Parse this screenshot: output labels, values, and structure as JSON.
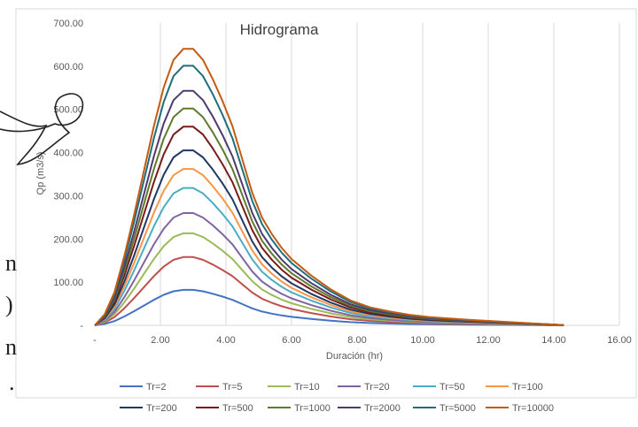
{
  "side_fragments": [
    "n",
    ")",
    "n",
    "."
  ],
  "chart_data": {
    "type": "line",
    "title": "Hidrograma",
    "xlabel": "Duración (hr)",
    "ylabel": "Qp (m3/s)",
    "xlim": [
      0,
      16
    ],
    "ylim": [
      0,
      700
    ],
    "x_ticks": [
      "-",
      "2.00",
      "4.00",
      "6.00",
      "8.00",
      "10.00",
      "12.00",
      "14.00",
      "16.00"
    ],
    "y_ticks": [
      "-",
      "100.00",
      "200.00",
      "300.00",
      "400.00",
      "500.00",
      "600.00",
      "700.00"
    ],
    "grid": "vertical",
    "legend_position": "bottom",
    "series": [
      {
        "name": "Tr=2",
        "color": "#4472C4",
        "peak": 82
      },
      {
        "name": "Tr=5",
        "color": "#C0504D",
        "peak": 158
      },
      {
        "name": "Tr=10",
        "color": "#9BBB59",
        "peak": 213
      },
      {
        "name": "Tr=20",
        "color": "#8064A2",
        "peak": 260
      },
      {
        "name": "Tr=50",
        "color": "#4BACC6",
        "peak": 318
      },
      {
        "name": "Tr=100",
        "color": "#F79646",
        "peak": 362
      },
      {
        "name": "Tr=200",
        "color": "#1F3864",
        "peak": 405
      },
      {
        "name": "Tr=500",
        "color": "#7B1A1A",
        "peak": 460
      },
      {
        "name": "Tr=1000",
        "color": "#5E7A2A",
        "peak": 502
      },
      {
        "name": "Tr=2000",
        "color": "#4E3A6E",
        "peak": 543
      },
      {
        "name": "Tr=5000",
        "color": "#1F6E7C",
        "peak": 601
      },
      {
        "name": "Tr=10000",
        "color": "#C55A11",
        "peak": 640
      }
    ],
    "shape": {
      "x": [
        0,
        0.3,
        0.6,
        0.9,
        1.2,
        1.5,
        1.8,
        2.1,
        2.4,
        2.7,
        3.0,
        3.3,
        3.6,
        3.9,
        4.2,
        4.5,
        4.8,
        5.1,
        5.4,
        5.7,
        6.0,
        6.6,
        7.2,
        7.8,
        8.4,
        9.0,
        9.6,
        10.2,
        10.8,
        11.4,
        12.0,
        12.6,
        13.2,
        13.8,
        14.3
      ],
      "ratio": [
        0,
        0.04,
        0.12,
        0.25,
        0.4,
        0.56,
        0.72,
        0.86,
        0.96,
        1.0,
        1.0,
        0.96,
        0.89,
        0.81,
        0.72,
        0.6,
        0.48,
        0.39,
        0.33,
        0.28,
        0.24,
        0.18,
        0.13,
        0.09,
        0.065,
        0.05,
        0.038,
        0.03,
        0.025,
        0.02,
        0.016,
        0.012,
        0.008,
        0.004,
        0.001
      ]
    }
  }
}
